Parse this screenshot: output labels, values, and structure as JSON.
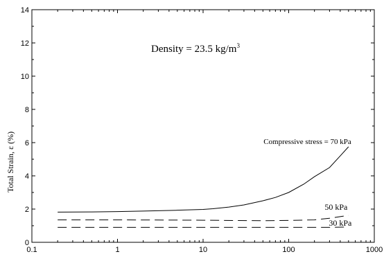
{
  "chart_data": {
    "type": "line",
    "x_scale": "log",
    "xlim": [
      0.1,
      1000
    ],
    "ylim": [
      0,
      14
    ],
    "xticks": [
      0.1,
      1,
      10,
      100,
      1000
    ],
    "xtick_labels": [
      "0.1",
      "1",
      "10",
      "100",
      "1000"
    ],
    "yticks": [
      0,
      2,
      4,
      6,
      8,
      10,
      12,
      14
    ],
    "ytick_labels": [
      "0",
      "2",
      "4",
      "6",
      "8",
      "10",
      "12",
      "14"
    ],
    "xlabel": "",
    "ylabel": "Total Strain, ε (%)",
    "grid": false,
    "annotations": {
      "density_prefix": "Density = 23.5 kg/m",
      "density_sup": "3"
    },
    "series": [
      {
        "name": "Compressive stress = 70 kPa",
        "style": "solid",
        "x": [
          0.2,
          0.5,
          1,
          2,
          5,
          10,
          13,
          20,
          30,
          50,
          70,
          100,
          150,
          200,
          300,
          400,
          500
        ],
        "y": [
          1.82,
          1.83,
          1.85,
          1.88,
          1.93,
          1.98,
          2.02,
          2.12,
          2.25,
          2.5,
          2.7,
          3.0,
          3.5,
          3.95,
          4.5,
          5.2,
          5.75
        ]
      },
      {
        "name": "50 kPa",
        "style": "dashed",
        "x": [
          0.2,
          1,
          10,
          50,
          100,
          200,
          300,
          500
        ],
        "y": [
          1.35,
          1.35,
          1.33,
          1.3,
          1.32,
          1.35,
          1.45,
          1.62
        ]
      },
      {
        "name": "30 kPa",
        "style": "dashed",
        "x": [
          0.2,
          1,
          10,
          100,
          300,
          500
        ],
        "y": [
          0.9,
          0.9,
          0.9,
          0.9,
          0.9,
          0.92
        ]
      }
    ]
  }
}
